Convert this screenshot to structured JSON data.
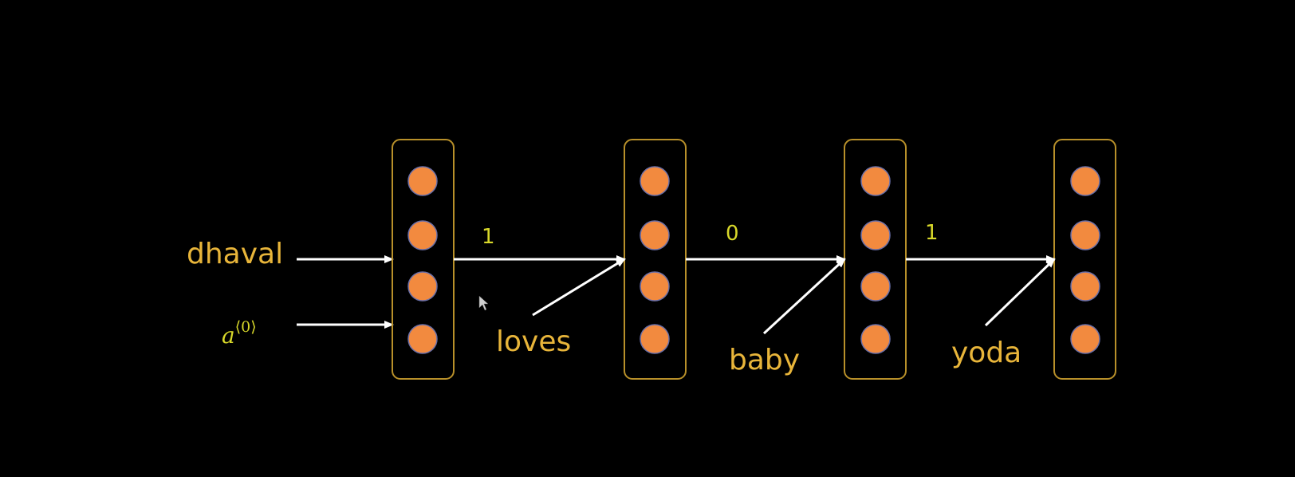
{
  "colors": {
    "background": "#000000",
    "word_text": "#e8b53a",
    "number_text": "#d8d82a",
    "cell_border": "#b8902a",
    "node_fill": "#f28a3f",
    "node_stroke": "#6a6fa8",
    "arrow": "#ffffff"
  },
  "inputs": {
    "word": "dhaval",
    "initial_state": "a",
    "initial_state_sup": "⟨0⟩"
  },
  "cells": [
    {
      "nodes": 4
    },
    {
      "nodes": 4
    },
    {
      "nodes": 4
    },
    {
      "nodes": 4
    }
  ],
  "transitions": [
    {
      "value": "1",
      "word": "loves"
    },
    {
      "value": "0",
      "word": "baby"
    },
    {
      "value": "1",
      "word": "yoda"
    }
  ]
}
